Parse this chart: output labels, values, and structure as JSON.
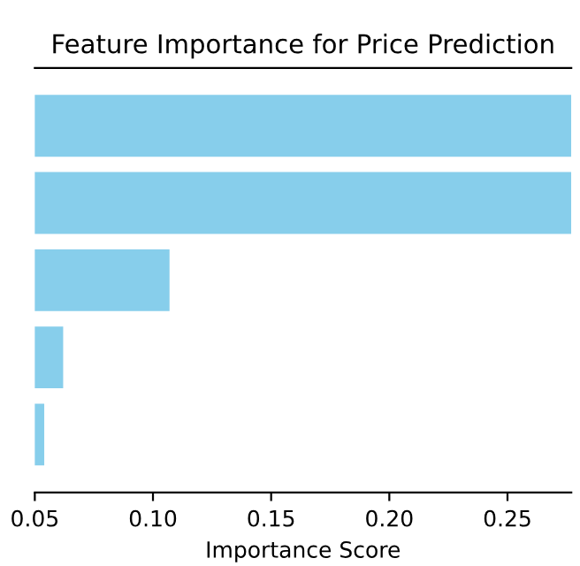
{
  "chart_data": {
    "type": "bar",
    "orientation": "horizontal",
    "title": "Feature Importance for Price Prediction",
    "xlabel": "Importance Score",
    "categories": [
      null,
      null,
      null,
      null,
      null
    ],
    "values": [
      0.277,
      0.277,
      0.107,
      0.062,
      0.054
    ],
    "color": "#87ceeb",
    "xlim": [
      0.05,
      0.277
    ],
    "xticks": [
      {
        "value": 0.05,
        "label": "0.05"
      },
      {
        "value": 0.1,
        "label": "0.10"
      },
      {
        "value": 0.15,
        "label": "0.15"
      },
      {
        "value": 0.2,
        "label": "0.20"
      },
      {
        "value": 0.25,
        "label": "0.25"
      }
    ],
    "tick_labels": "x",
    "grid": false
  }
}
